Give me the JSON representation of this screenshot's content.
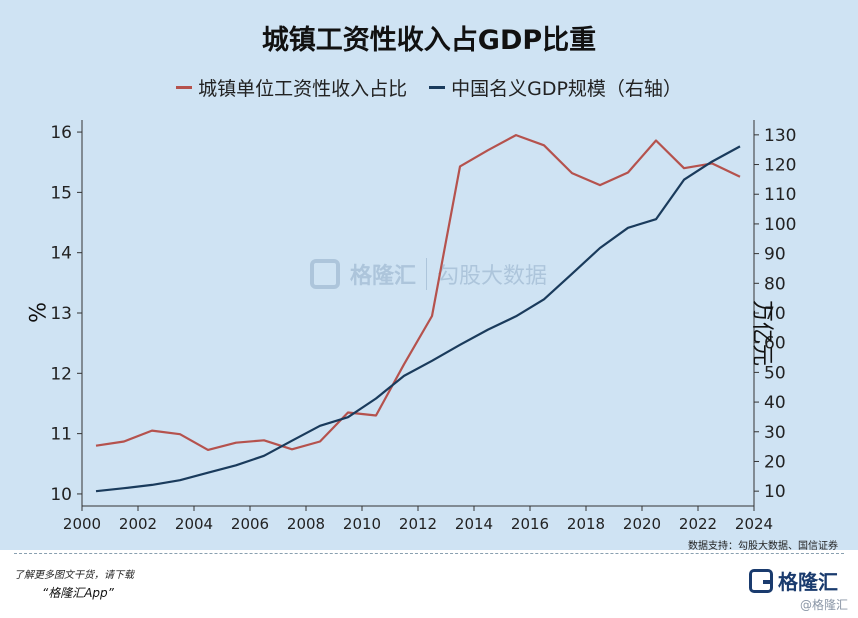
{
  "header": {
    "title": "城镇工资性收入占GDP比重"
  },
  "legend": [
    {
      "label": "城镇单位工资性收入占比",
      "color": "#b5524d"
    },
    {
      "label": "中国名义GDP规模（右轴）",
      "color": "#1a3b5c"
    }
  ],
  "axes": {
    "left_unit": "%",
    "right_unit": "万亿元"
  },
  "chart_data": {
    "type": "line",
    "title": "城镇工资性收入占GDP比重",
    "x_ticks": [
      "2000",
      "2002",
      "2004",
      "2006",
      "2008",
      "2010",
      "2012",
      "2014",
      "2016",
      "2018",
      "2020",
      "2022",
      "2024"
    ],
    "xlim": [
      2000,
      2024
    ],
    "left_ylim": [
      9.8,
      16.2
    ],
    "left_ticks": [
      "10",
      "11",
      "12",
      "13",
      "14",
      "15",
      "16"
    ],
    "right_ylim": [
      5,
      135
    ],
    "right_ticks": [
      "10",
      "20",
      "30",
      "40",
      "50",
      "60",
      "70",
      "80",
      "90",
      "100",
      "110",
      "120",
      "130"
    ],
    "series": [
      {
        "name": "城镇单位工资性收入占比",
        "axis": "left",
        "color": "#b5524d",
        "x": [
          2000.5,
          2001.5,
          2002.5,
          2003.5,
          2004.5,
          2005.5,
          2006.5,
          2007.5,
          2008.5,
          2009.5,
          2010.5,
          2011.5,
          2012.5,
          2013.5,
          2014.5,
          2015.5,
          2016.5,
          2017.5,
          2018.5,
          2019.5,
          2020.5,
          2021.5,
          2022.5,
          2023.5
        ],
        "values": [
          10.8,
          10.87,
          11.05,
          10.99,
          10.73,
          10.85,
          10.89,
          10.74,
          10.87,
          11.35,
          11.3,
          12.15,
          12.95,
          15.43,
          15.7,
          15.95,
          15.78,
          15.32,
          15.12,
          15.33,
          15.86,
          15.4,
          15.48,
          15.26
        ]
      },
      {
        "name": "中国名义GDP规模（右轴）",
        "axis": "right",
        "color": "#1a3b5c",
        "x": [
          2000.5,
          2001.5,
          2002.5,
          2003.5,
          2004.5,
          2005.5,
          2006.5,
          2007.5,
          2008.5,
          2009.5,
          2010.5,
          2011.5,
          2012.5,
          2013.5,
          2014.5,
          2015.5,
          2016.5,
          2017.5,
          2018.5,
          2019.5,
          2020.5,
          2021.5,
          2022.5,
          2023.5
        ],
        "values": [
          10.0,
          11.0,
          12.1,
          13.7,
          16.2,
          18.7,
          21.9,
          27.0,
          32.0,
          34.9,
          41.2,
          48.8,
          53.9,
          59.3,
          64.4,
          68.9,
          74.6,
          83.2,
          91.9,
          98.7,
          101.6,
          114.9,
          121.0,
          126.1
        ]
      }
    ]
  },
  "watermark": {
    "logo_text": "格隆汇",
    "gu_text": "勾股大数据"
  },
  "source": "数据支持：勾股大数据、国信证券",
  "footer": {
    "line1": "了解更多图文干货，请下载",
    "line2": "“格隆汇App”",
    "brand": "格隆汇",
    "wm_tag": "@格隆汇"
  }
}
